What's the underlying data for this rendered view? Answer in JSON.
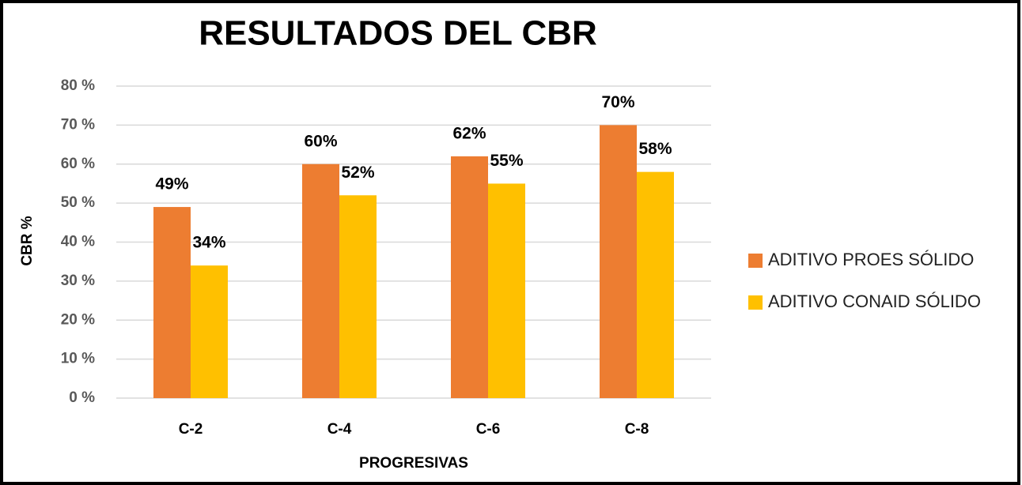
{
  "chart_data": {
    "type": "bar",
    "title": "RESULTADOS DEL CBR",
    "x_label": "PROGRESIVAS",
    "y_label": "CBR %",
    "categories": [
      "C-2",
      "C-4",
      "C-6",
      "C-8"
    ],
    "series": [
      {
        "name": "ADITIVO PROES SÓLIDO",
        "color": "#ed7d31",
        "values": [
          49,
          60,
          62,
          70
        ],
        "value_labels": [
          "49%",
          "60%",
          "62%",
          "70%"
        ]
      },
      {
        "name": "ADITIVO CONAID SÓLIDO",
        "color": "#ffc000",
        "values": [
          34,
          52,
          55,
          58
        ],
        "value_labels": [
          "34%",
          "52%",
          "55%",
          "58%"
        ]
      }
    ],
    "ylim": [
      0,
      80
    ],
    "yticks": [
      {
        "value": 0,
        "label": "0 %"
      },
      {
        "value": 10,
        "label": "10 %"
      },
      {
        "value": 20,
        "label": "20 %"
      },
      {
        "value": 30,
        "label": "30 %"
      },
      {
        "value": 40,
        "label": "40 %"
      },
      {
        "value": 50,
        "label": "50 %"
      },
      {
        "value": 60,
        "label": "60 %"
      },
      {
        "value": 70,
        "label": "70 %"
      },
      {
        "value": 80,
        "label": "80 %"
      }
    ],
    "grid": true,
    "legend": "right"
  }
}
